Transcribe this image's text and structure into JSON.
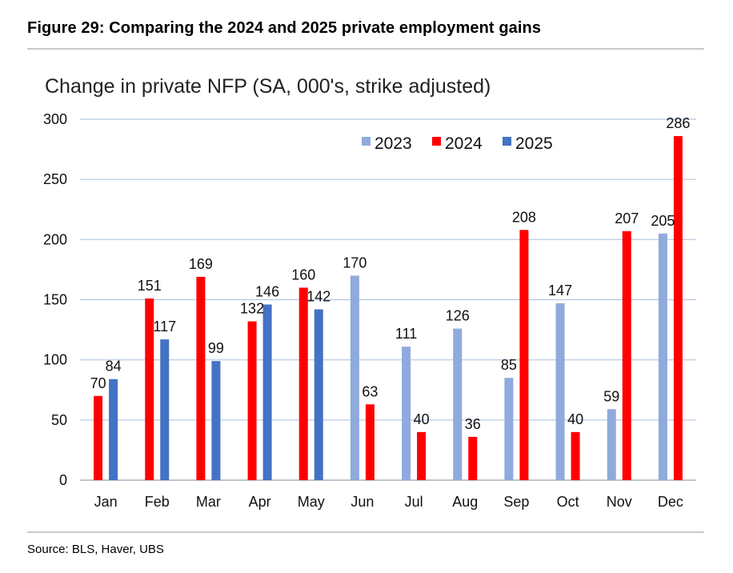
{
  "figure_title": "Figure 29: Comparing the 2024 and 2025 private employment gains",
  "source": "Source: BLS, Haver, UBS",
  "colors": {
    "2023": "#8faadc",
    "2024": "#ff0000",
    "2025": "#4472c4",
    "grid": "#b5c7e0"
  },
  "chart_data": {
    "type": "bar",
    "title": "Change in private NFP (SA, 000's, strike adjusted)",
    "xlabel": "",
    "ylabel": "",
    "ylim": [
      0,
      300
    ],
    "yticks": [
      0,
      50,
      100,
      150,
      200,
      250,
      300
    ],
    "grid": true,
    "legend_position": "top-right",
    "categories": [
      "Jan",
      "Feb",
      "Mar",
      "Apr",
      "May",
      "Jun",
      "Jul",
      "Aug",
      "Sep",
      "Oct",
      "Nov",
      "Dec"
    ],
    "series": [
      {
        "name": "2023",
        "color": "#8faadc",
        "values": [
          null,
          null,
          null,
          null,
          null,
          170,
          111,
          126,
          85,
          147,
          59,
          205
        ]
      },
      {
        "name": "2024",
        "color": "#ff0000",
        "values": [
          70,
          151,
          169,
          132,
          160,
          63,
          40,
          36,
          208,
          40,
          207,
          286
        ]
      },
      {
        "name": "2025",
        "color": "#4472c4",
        "values": [
          84,
          117,
          99,
          146,
          142,
          null,
          null,
          null,
          null,
          null,
          null,
          null
        ]
      }
    ]
  }
}
